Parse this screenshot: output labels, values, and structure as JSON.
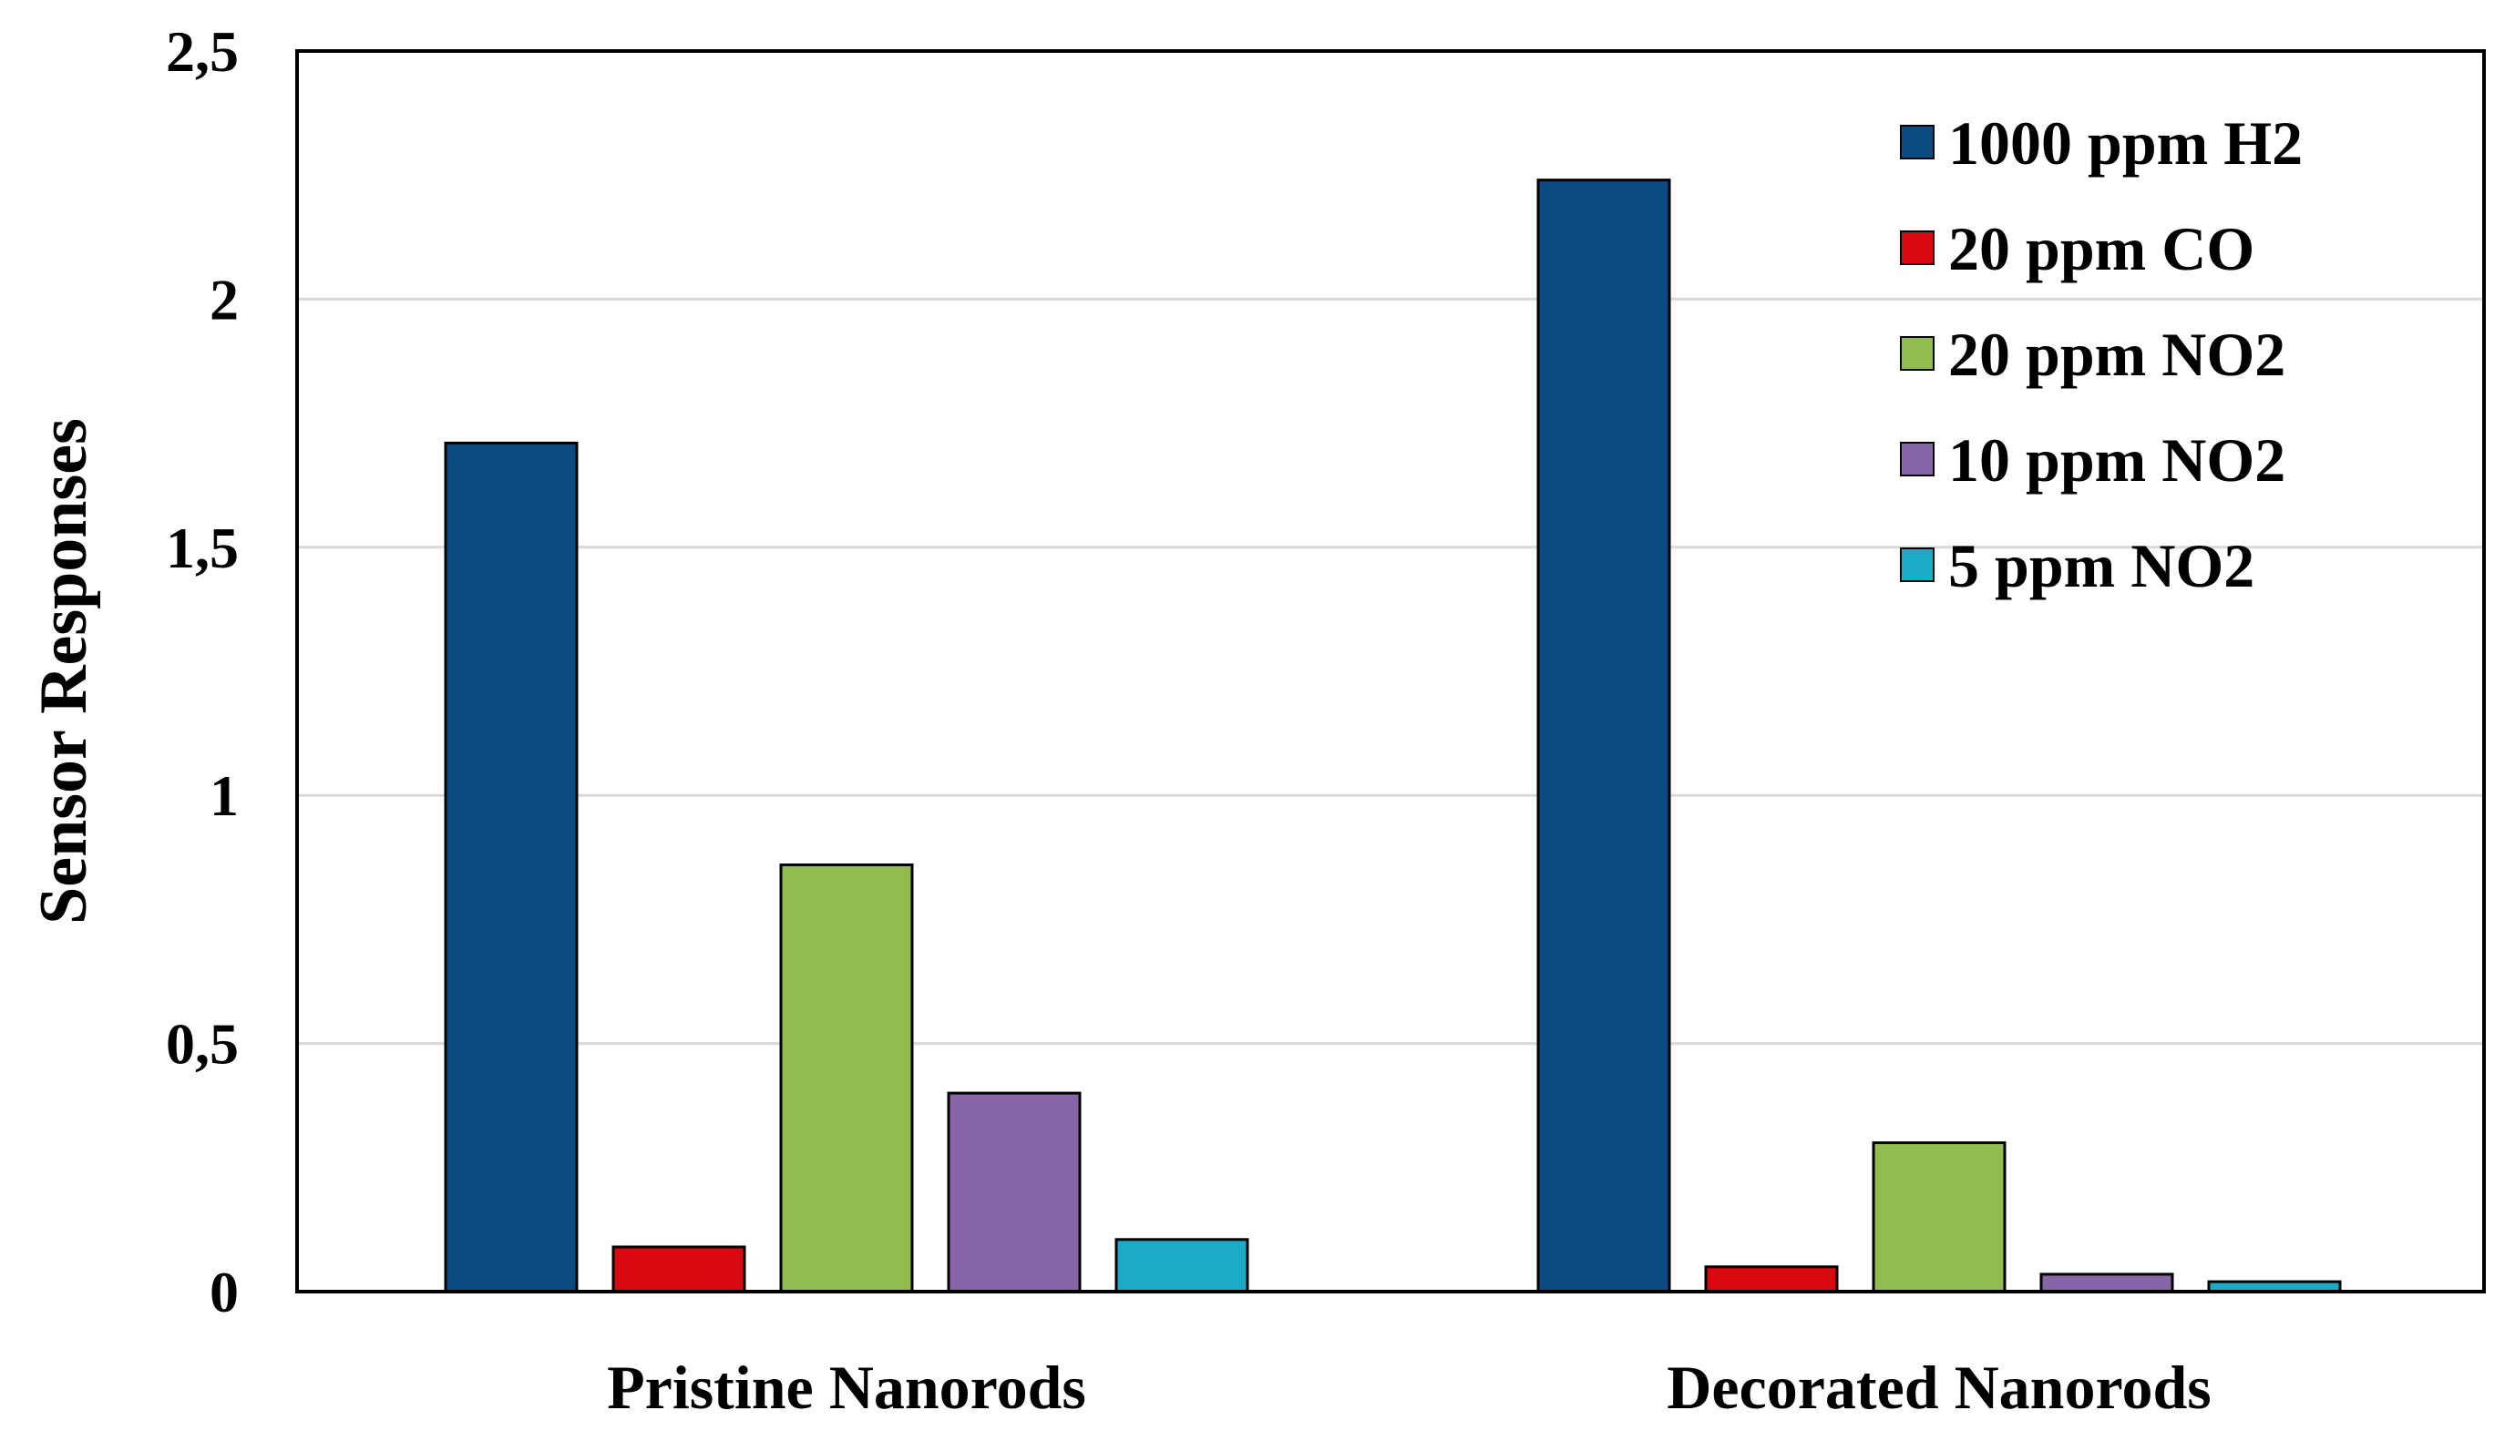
{
  "chart_data": {
    "type": "bar",
    "title": "",
    "xlabel": "",
    "ylabel": "Sensor Responses",
    "ylim": [
      0,
      2.5
    ],
    "yticks": [
      {
        "value": 0,
        "label": "0"
      },
      {
        "value": 0.5,
        "label": "0,5"
      },
      {
        "value": 1,
        "label": "1"
      },
      {
        "value": 1.5,
        "label": "1,5"
      },
      {
        "value": 2,
        "label": "2"
      },
      {
        "value": 2.5,
        "label": "2,5"
      }
    ],
    "grid": true,
    "legend_position": "top-right",
    "categories": [
      "Pristine Nanorods",
      "Decorated Nanorods"
    ],
    "series": [
      {
        "name": "1000 ppm H2",
        "color": "#0c4a82",
        "values": [
          1.71,
          2.24
        ]
      },
      {
        "name": "20 ppm CO",
        "color": "#d9090f",
        "values": [
          0.09,
          0.05
        ]
      },
      {
        "name": "20 ppm NO2",
        "color": "#93bc50",
        "values": [
          0.86,
          0.3
        ]
      },
      {
        "name": "10 ppm NO2",
        "color": "#8766a7",
        "values": [
          0.4,
          0.035
        ]
      },
      {
        "name": "5 ppm NO2",
        "color": "#1aacc7",
        "values": [
          0.105,
          0.02
        ]
      }
    ]
  }
}
